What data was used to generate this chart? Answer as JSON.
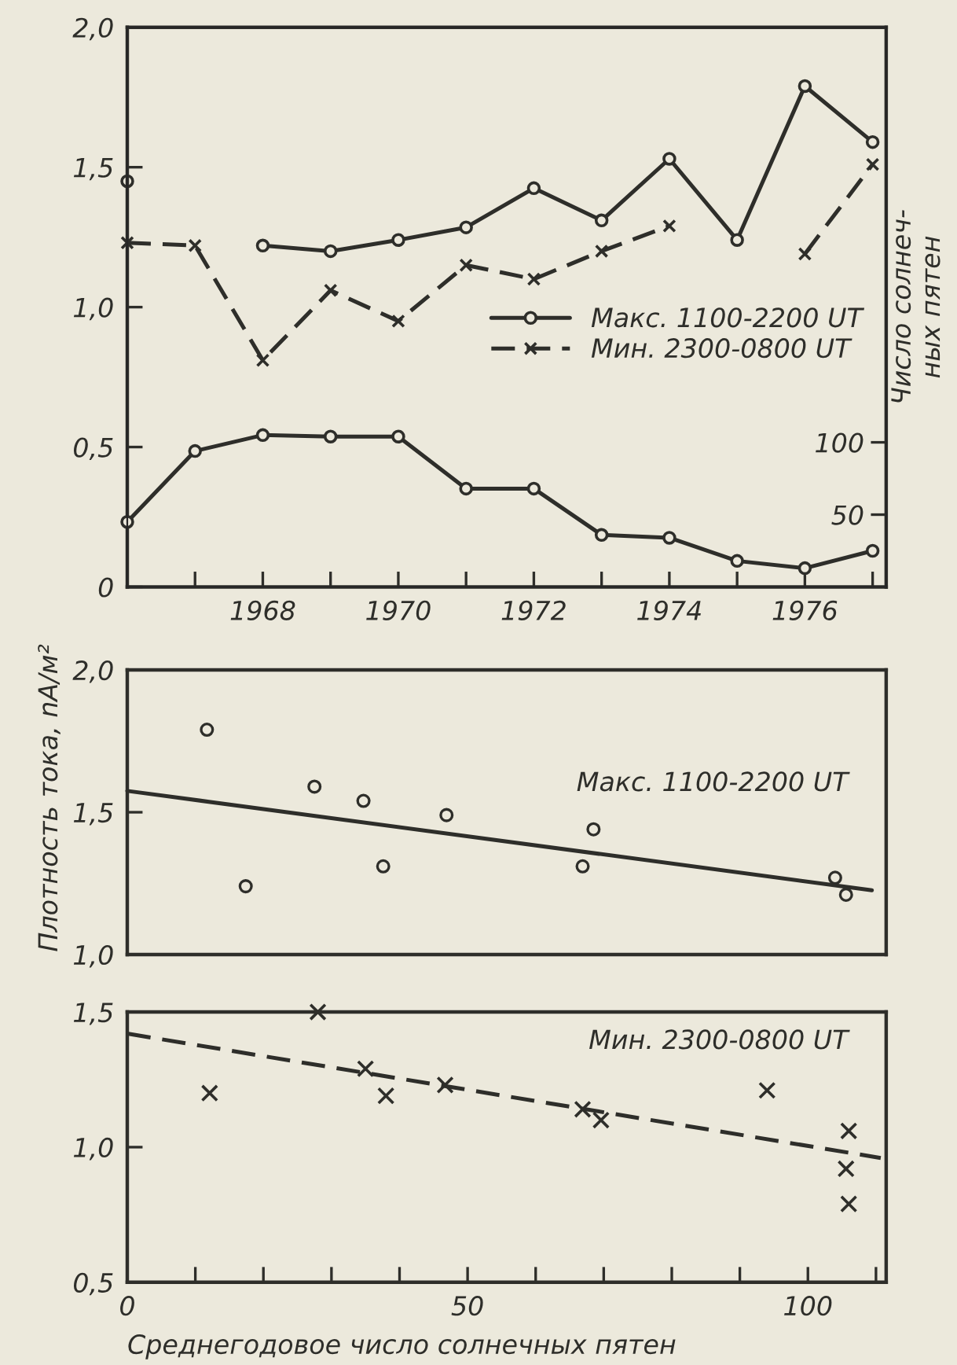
{
  "chart_data": [
    {
      "type": "line",
      "ylabel": null,
      "y2label": "Число солнеч-\nных пятен",
      "x": [
        1966,
        1967,
        1968,
        1969,
        1970,
        1971,
        1972,
        1973,
        1974,
        1975,
        1976,
        1977
      ],
      "xlim": [
        1966,
        1977.2
      ],
      "ylim": [
        0,
        2.0
      ],
      "y2lim": [
        0,
        387
      ],
      "xticks": [
        {
          "value": 1966,
          "label": null
        },
        {
          "value": 1967,
          "label": null
        },
        1968,
        {
          "value": 1969,
          "label": null
        },
        1970,
        {
          "value": 1971,
          "label": null
        },
        1972,
        {
          "value": 1973,
          "label": null
        },
        1974,
        {
          "value": 1975,
          "label": null
        },
        1976,
        {
          "value": 1977,
          "label": null
        }
      ],
      "yticks": [
        0,
        {
          "value": 0.5,
          "label": "0,5"
        },
        {
          "value": 1.0,
          "label": "1,0"
        },
        {
          "value": 1.5,
          "label": "1,5"
        },
        {
          "value": 2.0,
          "label": "2,0"
        }
      ],
      "y2ticks": [
        50,
        100
      ],
      "grid": false,
      "legend": "right",
      "series": [
        {
          "name": "Макс. 1100-2200 UT",
          "color": "#2e2e2a",
          "marker": "circle",
          "line_style": "solid",
          "values": [
            1.45,
            null,
            1.22,
            1.2,
            1.24,
            1.285,
            1.425,
            1.31,
            1.53,
            1.24,
            1.79,
            1.59
          ]
        },
        {
          "name": "Мин. 2300-0800 UT",
          "color": "#2e2e2a",
          "marker": "cross",
          "line_style": "dashed",
          "values": [
            1.23,
            1.22,
            0.81,
            1.06,
            0.95,
            1.15,
            1.1,
            1.2,
            1.29,
            null,
            1.19,
            1.51
          ]
        },
        {
          "color": "#2e2e2a",
          "marker": "circle",
          "line_style": "solid",
          "axis": "y2",
          "values": [
            45,
            94,
            105,
            104,
            104,
            68,
            68,
            36,
            34,
            18,
            13,
            25
          ]
        }
      ]
    },
    {
      "type": "scatter",
      "ylabel": "Плотность тока, nA/м²",
      "tick_labels": "y",
      "xlim": [
        0,
        111.5
      ],
      "ylim": [
        1.0,
        2.0
      ],
      "yticks": [
        {
          "value": 1.0,
          "label": "1,0"
        },
        {
          "value": 1.5,
          "label": "1,5"
        },
        {
          "value": 2.0,
          "label": "2,0"
        }
      ],
      "grid": false,
      "annotations": [
        "Макс. 1100-2200 UT"
      ],
      "series": [
        {
          "color": "#2e2e2a",
          "marker": "circle",
          "x": [
            11.7,
            17.4,
            27.5,
            34.7,
            37.6,
            46.9,
            66.9,
            68.5,
            104,
            105.6
          ],
          "values": [
            1.79,
            1.24,
            1.59,
            1.54,
            1.31,
            1.49,
            1.31,
            1.44,
            1.27,
            1.21
          ]
        },
        {
          "type": "line",
          "color": "#2e2e2a",
          "marker": "none",
          "line_style": "solid",
          "x": [
            0,
            109.4
          ],
          "values": [
            1.575,
            1.226
          ]
        }
      ]
    },
    {
      "type": "scatter",
      "xlabel": "Среднегодовое число солнечных пятен",
      "xlim": [
        0,
        111.5
      ],
      "ylim": [
        0.5,
        1.5
      ],
      "xticks": [
        0,
        {
          "value": 10,
          "label": null
        },
        {
          "value": 20,
          "label": null
        },
        {
          "value": 30,
          "label": null
        },
        {
          "value": 40,
          "label": null
        },
        50,
        {
          "value": 60,
          "label": null
        },
        {
          "value": 70,
          "label": null
        },
        {
          "value": 80,
          "label": null
        },
        {
          "value": 90,
          "label": null
        },
        100,
        {
          "value": 110,
          "label": null
        }
      ],
      "yticks": [
        {
          "value": 0.5,
          "label": "0,5"
        },
        {
          "value": 1.0,
          "label": "1,0"
        },
        {
          "value": 1.5,
          "label": "1,5"
        }
      ],
      "grid": false,
      "annotations": [
        "Мин. 2300-0800 UT"
      ],
      "series": [
        {
          "color": "#2e2e2a",
          "marker": "cross",
          "x": [
            12.1,
            28,
            35,
            38,
            46.7,
            66.9,
            69.6,
            94,
            106,
            105.6,
            106
          ],
          "values": [
            1.2,
            1.5,
            1.29,
            1.19,
            1.23,
            1.14,
            1.1,
            1.21,
            1.06,
            0.92,
            0.79
          ]
        },
        {
          "type": "line",
          "color": "#2e2e2a",
          "marker": "none",
          "line_style": "dashed",
          "x": [
            0,
            110.7
          ],
          "values": [
            1.42,
            0.96
          ]
        }
      ]
    }
  ]
}
